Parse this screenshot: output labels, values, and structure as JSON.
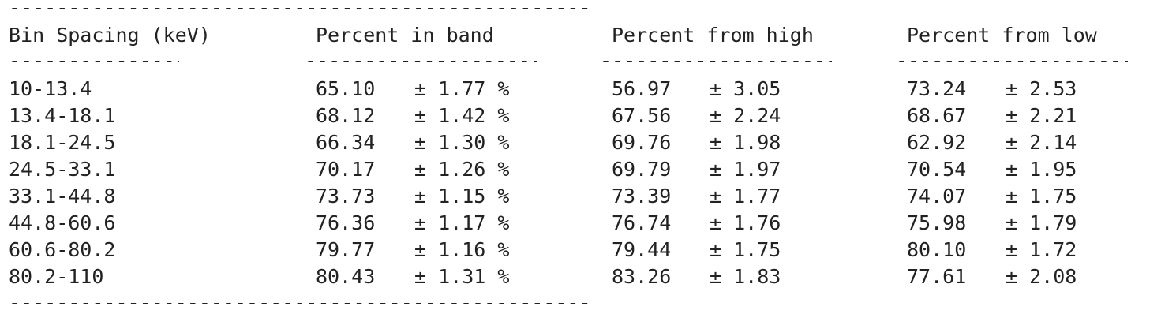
{
  "table": {
    "top_rule": "-------------------------------------------------",
    "bottom_rule": "-------------------------------------------------",
    "headers": [
      "Bin Spacing (keV)",
      "Percent in band",
      "Percent from high",
      "Percent from low"
    ],
    "underlines": [
      "---------------",
      "---------------------",
      "---------------------",
      "---------------------"
    ],
    "rows": [
      {
        "bin": "10-13.4",
        "band": "65.10",
        "band_err": "± 1.77 %",
        "high": "56.97",
        "high_err": "± 3.05",
        "low": "73.24",
        "low_err": "± 2.53"
      },
      {
        "bin": "13.4-18.1",
        "band": "68.12",
        "band_err": "± 1.42 %",
        "high": "67.56",
        "high_err": "± 2.24",
        "low": "68.67",
        "low_err": "± 2.21"
      },
      {
        "bin": "18.1-24.5",
        "band": "66.34",
        "band_err": "± 1.30 %",
        "high": "69.76",
        "high_err": "± 1.98",
        "low": "62.92",
        "low_err": "± 2.14"
      },
      {
        "bin": "24.5-33.1",
        "band": "70.17",
        "band_err": "± 1.26 %",
        "high": "69.79",
        "high_err": "± 1.97",
        "low": "70.54",
        "low_err": "± 1.95"
      },
      {
        "bin": "33.1-44.8",
        "band": "73.73",
        "band_err": "± 1.15 %",
        "high": "73.39",
        "high_err": "± 1.77",
        "low": "74.07",
        "low_err": "± 1.75"
      },
      {
        "bin": "44.8-60.6",
        "band": "76.36",
        "band_err": "± 1.17 %",
        "high": "76.74",
        "high_err": "± 1.76",
        "low": "75.98",
        "low_err": "± 1.79"
      },
      {
        "bin": "60.6-80.2",
        "band": "79.77",
        "band_err": "± 1.16 %",
        "high": "79.44",
        "high_err": "± 1.75",
        "low": "80.10",
        "low_err": "± 1.72"
      },
      {
        "bin": "80.2-110",
        "band": "80.43",
        "band_err": "± 1.31 %",
        "high": "83.26",
        "high_err": "± 1.83",
        "low": "77.61",
        "low_err": "± 2.08"
      }
    ]
  }
}
